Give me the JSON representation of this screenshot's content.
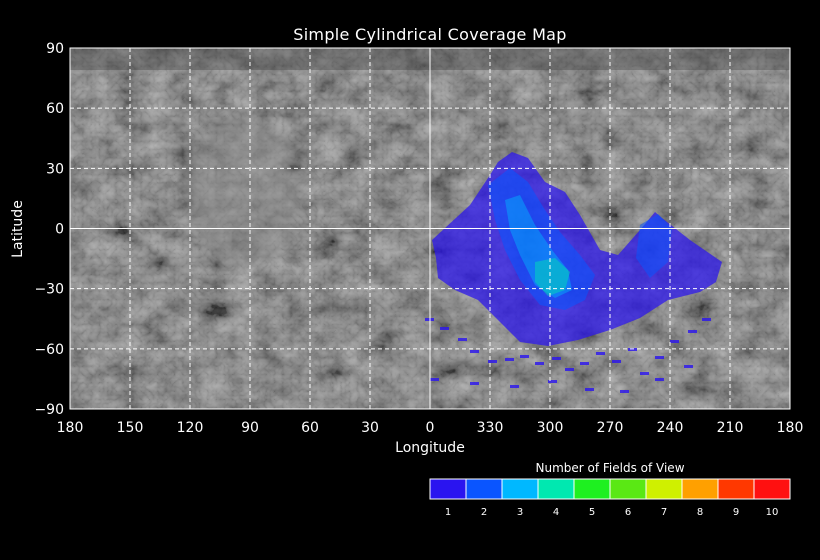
{
  "title": "Simple Cylindrical Coverage Map",
  "map": {
    "x_label": "Longitude",
    "y_label": "Latitude",
    "x_ticks": [
      "180",
      "150",
      "120",
      "90",
      "60",
      "30",
      "0",
      "330",
      "300",
      "270",
      "240",
      "210",
      "180"
    ],
    "y_ticks": [
      "90",
      "60",
      "30",
      "0",
      "−30",
      "−60",
      "−90"
    ],
    "grid": true,
    "background": "grayscale planetary surface mosaic",
    "coverage_colors": [
      "#2a14f0",
      "#0a55ff",
      "#00b8ff",
      "#00e8b0",
      "#1ef020",
      "#5ae814",
      "#cff000",
      "#ffa000",
      "#ff3800",
      "#ff1010"
    ]
  },
  "legend": {
    "title": "Number of Fields of View",
    "items": [
      {
        "label": "1",
        "color": "#2a14f0"
      },
      {
        "label": "2",
        "color": "#0a55ff"
      },
      {
        "label": "3",
        "color": "#00b8ff"
      },
      {
        "label": "4",
        "color": "#00e8b0"
      },
      {
        "label": "5",
        "color": "#1ef020"
      },
      {
        "label": "6",
        "color": "#5ae814"
      },
      {
        "label": "7",
        "color": "#cff000"
      },
      {
        "label": "8",
        "color": "#ffa000"
      },
      {
        "label": "9",
        "color": "#ff3800"
      },
      {
        "label": "10",
        "color": "#ff1010"
      }
    ]
  }
}
